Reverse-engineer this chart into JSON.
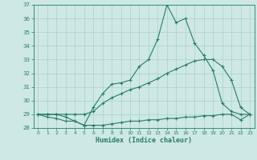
{
  "xlabel": "Humidex (Indice chaleur)",
  "x": [
    0,
    1,
    2,
    3,
    4,
    5,
    6,
    7,
    8,
    9,
    10,
    11,
    12,
    13,
    14,
    15,
    16,
    17,
    18,
    19,
    20,
    21,
    22,
    23
  ],
  "line1": [
    29,
    29,
    29,
    28.8,
    28.5,
    28.2,
    29.5,
    30.5,
    31.2,
    31.3,
    31.5,
    32.5,
    33.0,
    34.5,
    37.0,
    35.7,
    36.0,
    34.2,
    33.3,
    32.2,
    29.8,
    29.2,
    29.0,
    29.0
  ],
  "line2": [
    29,
    29,
    29,
    29.0,
    29.0,
    29.0,
    29.2,
    29.8,
    30.2,
    30.5,
    30.8,
    31.0,
    31.3,
    31.6,
    32.0,
    32.3,
    32.6,
    32.9,
    33.0,
    33.0,
    32.5,
    31.5,
    29.5,
    29.0
  ],
  "line3": [
    29,
    28.8,
    28.7,
    28.5,
    28.5,
    28.2,
    28.2,
    28.2,
    28.3,
    28.4,
    28.5,
    28.5,
    28.6,
    28.6,
    28.7,
    28.7,
    28.8,
    28.8,
    28.9,
    28.9,
    29.0,
    29.0,
    28.6,
    29.0
  ],
  "line_color": "#2a7b6e",
  "bg_color": "#cde8e5",
  "grid_color": "#aed0cc",
  "ylim": [
    28,
    37
  ],
  "xlim": [
    -0.5,
    23.5
  ],
  "yticks": [
    28,
    29,
    30,
    31,
    32,
    33,
    34,
    35,
    36,
    37
  ],
  "xticks": [
    0,
    1,
    2,
    3,
    4,
    5,
    6,
    7,
    8,
    9,
    10,
    11,
    12,
    13,
    14,
    15,
    16,
    17,
    18,
    19,
    20,
    21,
    22,
    23
  ]
}
